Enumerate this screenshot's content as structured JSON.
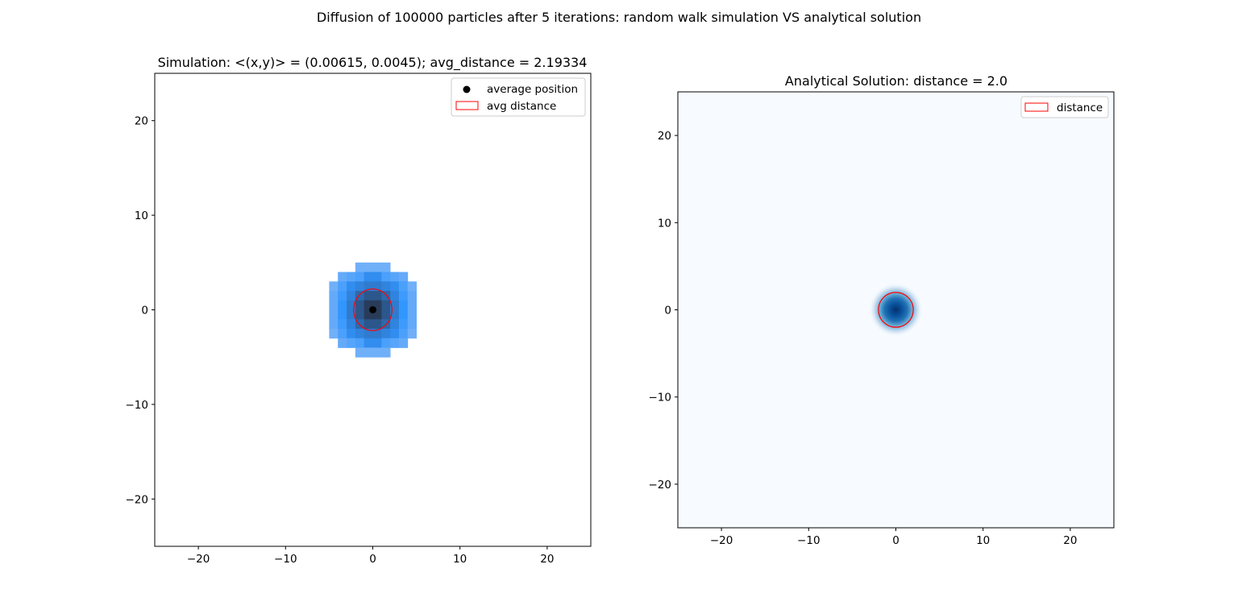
{
  "figure": {
    "suptitle": "Diffusion of 100000 particles after 5 iterations: random walk simulation VS analytical solution"
  },
  "chart_data": [
    {
      "type": "heatmap",
      "title": "Simulation: <(x,y)> = (0.00615, 0.0045); avg_distance = 2.19334",
      "xlabel": "",
      "ylabel": "",
      "xlim": [
        -25,
        25
      ],
      "ylim": [
        -25,
        25
      ],
      "xticks": [
        -20,
        -10,
        0,
        10,
        20
      ],
      "yticks": [
        -20,
        -10,
        0,
        10,
        20
      ],
      "grid": false,
      "colormap": "blue",
      "cells": [
        {
          "x": -1.5,
          "y": 4.5,
          "v": 0.25
        },
        {
          "x": -0.5,
          "y": 4.5,
          "v": 0.25
        },
        {
          "x": 0.5,
          "y": 4.5,
          "v": 0.25
        },
        {
          "x": 1.5,
          "y": 4.5,
          "v": 0.25
        },
        {
          "x": -3.5,
          "y": 3.5,
          "v": 0.3
        },
        {
          "x": -2.5,
          "y": 3.5,
          "v": 0.35
        },
        {
          "x": -1.5,
          "y": 3.5,
          "v": 0.4
        },
        {
          "x": -0.5,
          "y": 3.5,
          "v": 0.55
        },
        {
          "x": 0.5,
          "y": 3.5,
          "v": 0.55
        },
        {
          "x": 1.5,
          "y": 3.5,
          "v": 0.4
        },
        {
          "x": 2.5,
          "y": 3.5,
          "v": 0.35
        },
        {
          "x": 3.5,
          "y": 3.5,
          "v": 0.3
        },
        {
          "x": -4.5,
          "y": 2.5,
          "v": 0.25
        },
        {
          "x": -3.5,
          "y": 2.5,
          "v": 0.4
        },
        {
          "x": -2.5,
          "y": 2.5,
          "v": 0.55
        },
        {
          "x": -1.5,
          "y": 2.5,
          "v": 0.6
        },
        {
          "x": -0.5,
          "y": 2.5,
          "v": 0.65
        },
        {
          "x": 0.5,
          "y": 2.5,
          "v": 0.65
        },
        {
          "x": 1.5,
          "y": 2.5,
          "v": 0.6
        },
        {
          "x": 2.5,
          "y": 2.5,
          "v": 0.55
        },
        {
          "x": 3.5,
          "y": 2.5,
          "v": 0.4
        },
        {
          "x": 4.5,
          "y": 2.5,
          "v": 0.25
        },
        {
          "x": -4.5,
          "y": 1.5,
          "v": 0.3
        },
        {
          "x": -3.5,
          "y": 1.5,
          "v": 0.45
        },
        {
          "x": -2.5,
          "y": 1.5,
          "v": 0.6
        },
        {
          "x": -1.5,
          "y": 1.5,
          "v": 0.75
        },
        {
          "x": -0.5,
          "y": 1.5,
          "v": 0.85
        },
        {
          "x": 0.5,
          "y": 1.5,
          "v": 0.85
        },
        {
          "x": 1.5,
          "y": 1.5,
          "v": 0.75
        },
        {
          "x": 2.5,
          "y": 1.5,
          "v": 0.6
        },
        {
          "x": 3.5,
          "y": 1.5,
          "v": 0.45
        },
        {
          "x": 4.5,
          "y": 1.5,
          "v": 0.3
        },
        {
          "x": -4.5,
          "y": 0.5,
          "v": 0.3
        },
        {
          "x": -3.5,
          "y": 0.5,
          "v": 0.5
        },
        {
          "x": -2.5,
          "y": 0.5,
          "v": 0.65
        },
        {
          "x": -1.5,
          "y": 0.5,
          "v": 0.85
        },
        {
          "x": -0.5,
          "y": 0.5,
          "v": 1.0
        },
        {
          "x": 0.5,
          "y": 0.5,
          "v": 1.0
        },
        {
          "x": 1.5,
          "y": 0.5,
          "v": 0.85
        },
        {
          "x": 2.5,
          "y": 0.5,
          "v": 0.65
        },
        {
          "x": 3.5,
          "y": 0.5,
          "v": 0.5
        },
        {
          "x": 4.5,
          "y": 0.5,
          "v": 0.3
        },
        {
          "x": -4.5,
          "y": -0.5,
          "v": 0.3
        },
        {
          "x": -3.5,
          "y": -0.5,
          "v": 0.5
        },
        {
          "x": -2.5,
          "y": -0.5,
          "v": 0.65
        },
        {
          "x": -1.5,
          "y": -0.5,
          "v": 0.85
        },
        {
          "x": -0.5,
          "y": -0.5,
          "v": 1.0
        },
        {
          "x": 0.5,
          "y": -0.5,
          "v": 1.0
        },
        {
          "x": 1.5,
          "y": -0.5,
          "v": 0.85
        },
        {
          "x": 2.5,
          "y": -0.5,
          "v": 0.65
        },
        {
          "x": 3.5,
          "y": -0.5,
          "v": 0.5
        },
        {
          "x": 4.5,
          "y": -0.5,
          "v": 0.3
        },
        {
          "x": -4.5,
          "y": -1.5,
          "v": 0.3
        },
        {
          "x": -3.5,
          "y": -1.5,
          "v": 0.45
        },
        {
          "x": -2.5,
          "y": -1.5,
          "v": 0.6
        },
        {
          "x": -1.5,
          "y": -1.5,
          "v": 0.75
        },
        {
          "x": -0.5,
          "y": -1.5,
          "v": 0.85
        },
        {
          "x": 0.5,
          "y": -1.5,
          "v": 0.85
        },
        {
          "x": 1.5,
          "y": -1.5,
          "v": 0.75
        },
        {
          "x": 2.5,
          "y": -1.5,
          "v": 0.6
        },
        {
          "x": 3.5,
          "y": -1.5,
          "v": 0.45
        },
        {
          "x": 4.5,
          "y": -1.5,
          "v": 0.3
        },
        {
          "x": -4.5,
          "y": -2.5,
          "v": 0.25
        },
        {
          "x": -3.5,
          "y": -2.5,
          "v": 0.4
        },
        {
          "x": -2.5,
          "y": -2.5,
          "v": 0.55
        },
        {
          "x": -1.5,
          "y": -2.5,
          "v": 0.6
        },
        {
          "x": -0.5,
          "y": -2.5,
          "v": 0.65
        },
        {
          "x": 0.5,
          "y": -2.5,
          "v": 0.65
        },
        {
          "x": 1.5,
          "y": -2.5,
          "v": 0.6
        },
        {
          "x": 2.5,
          "y": -2.5,
          "v": 0.55
        },
        {
          "x": 3.5,
          "y": -2.5,
          "v": 0.4
        },
        {
          "x": 4.5,
          "y": -2.5,
          "v": 0.25
        },
        {
          "x": -3.5,
          "y": -3.5,
          "v": 0.3
        },
        {
          "x": -2.5,
          "y": -3.5,
          "v": 0.35
        },
        {
          "x": -1.5,
          "y": -3.5,
          "v": 0.4
        },
        {
          "x": -0.5,
          "y": -3.5,
          "v": 0.55
        },
        {
          "x": 0.5,
          "y": -3.5,
          "v": 0.55
        },
        {
          "x": 1.5,
          "y": -3.5,
          "v": 0.4
        },
        {
          "x": 2.5,
          "y": -3.5,
          "v": 0.35
        },
        {
          "x": 3.5,
          "y": -3.5,
          "v": 0.3
        },
        {
          "x": -1.5,
          "y": -4.5,
          "v": 0.25
        },
        {
          "x": -0.5,
          "y": -4.5,
          "v": 0.25
        },
        {
          "x": 0.5,
          "y": -4.5,
          "v": 0.25
        },
        {
          "x": 1.5,
          "y": -4.5,
          "v": 0.25
        }
      ],
      "points": [
        {
          "name": "average position",
          "x": 0.00615,
          "y": 0.0045,
          "color": "#000000"
        }
      ],
      "circles": [
        {
          "name": "avg distance",
          "cx": 0.00615,
          "cy": 0.0045,
          "r": 2.19334,
          "color": "#ff0000"
        }
      ],
      "legend": {
        "placement": "top-right",
        "entries": [
          {
            "label": "average position",
            "kind": "marker",
            "color": "#000000"
          },
          {
            "label": "avg distance",
            "kind": "patch",
            "color": "#ff0000"
          }
        ]
      }
    },
    {
      "type": "heatmap",
      "title": "Analytical Solution: distance = 2.0",
      "xlabel": "",
      "ylabel": "",
      "xlim": [
        -25,
        25
      ],
      "ylim": [
        -25,
        25
      ],
      "xticks": [
        -20,
        -10,
        0,
        10,
        20
      ],
      "yticks": [
        -20,
        -10,
        0,
        10,
        20
      ],
      "grid": false,
      "colormap": "Blues",
      "gaussian": {
        "cx": 0,
        "cy": 0,
        "sigma": 1.2
      },
      "circles": [
        {
          "name": "distance",
          "cx": 0,
          "cy": 0,
          "r": 2.0,
          "color": "#ff0000"
        }
      ],
      "legend": {
        "placement": "top-right",
        "entries": [
          {
            "label": "distance",
            "kind": "patch",
            "color": "#ff0000"
          }
        ]
      }
    }
  ]
}
